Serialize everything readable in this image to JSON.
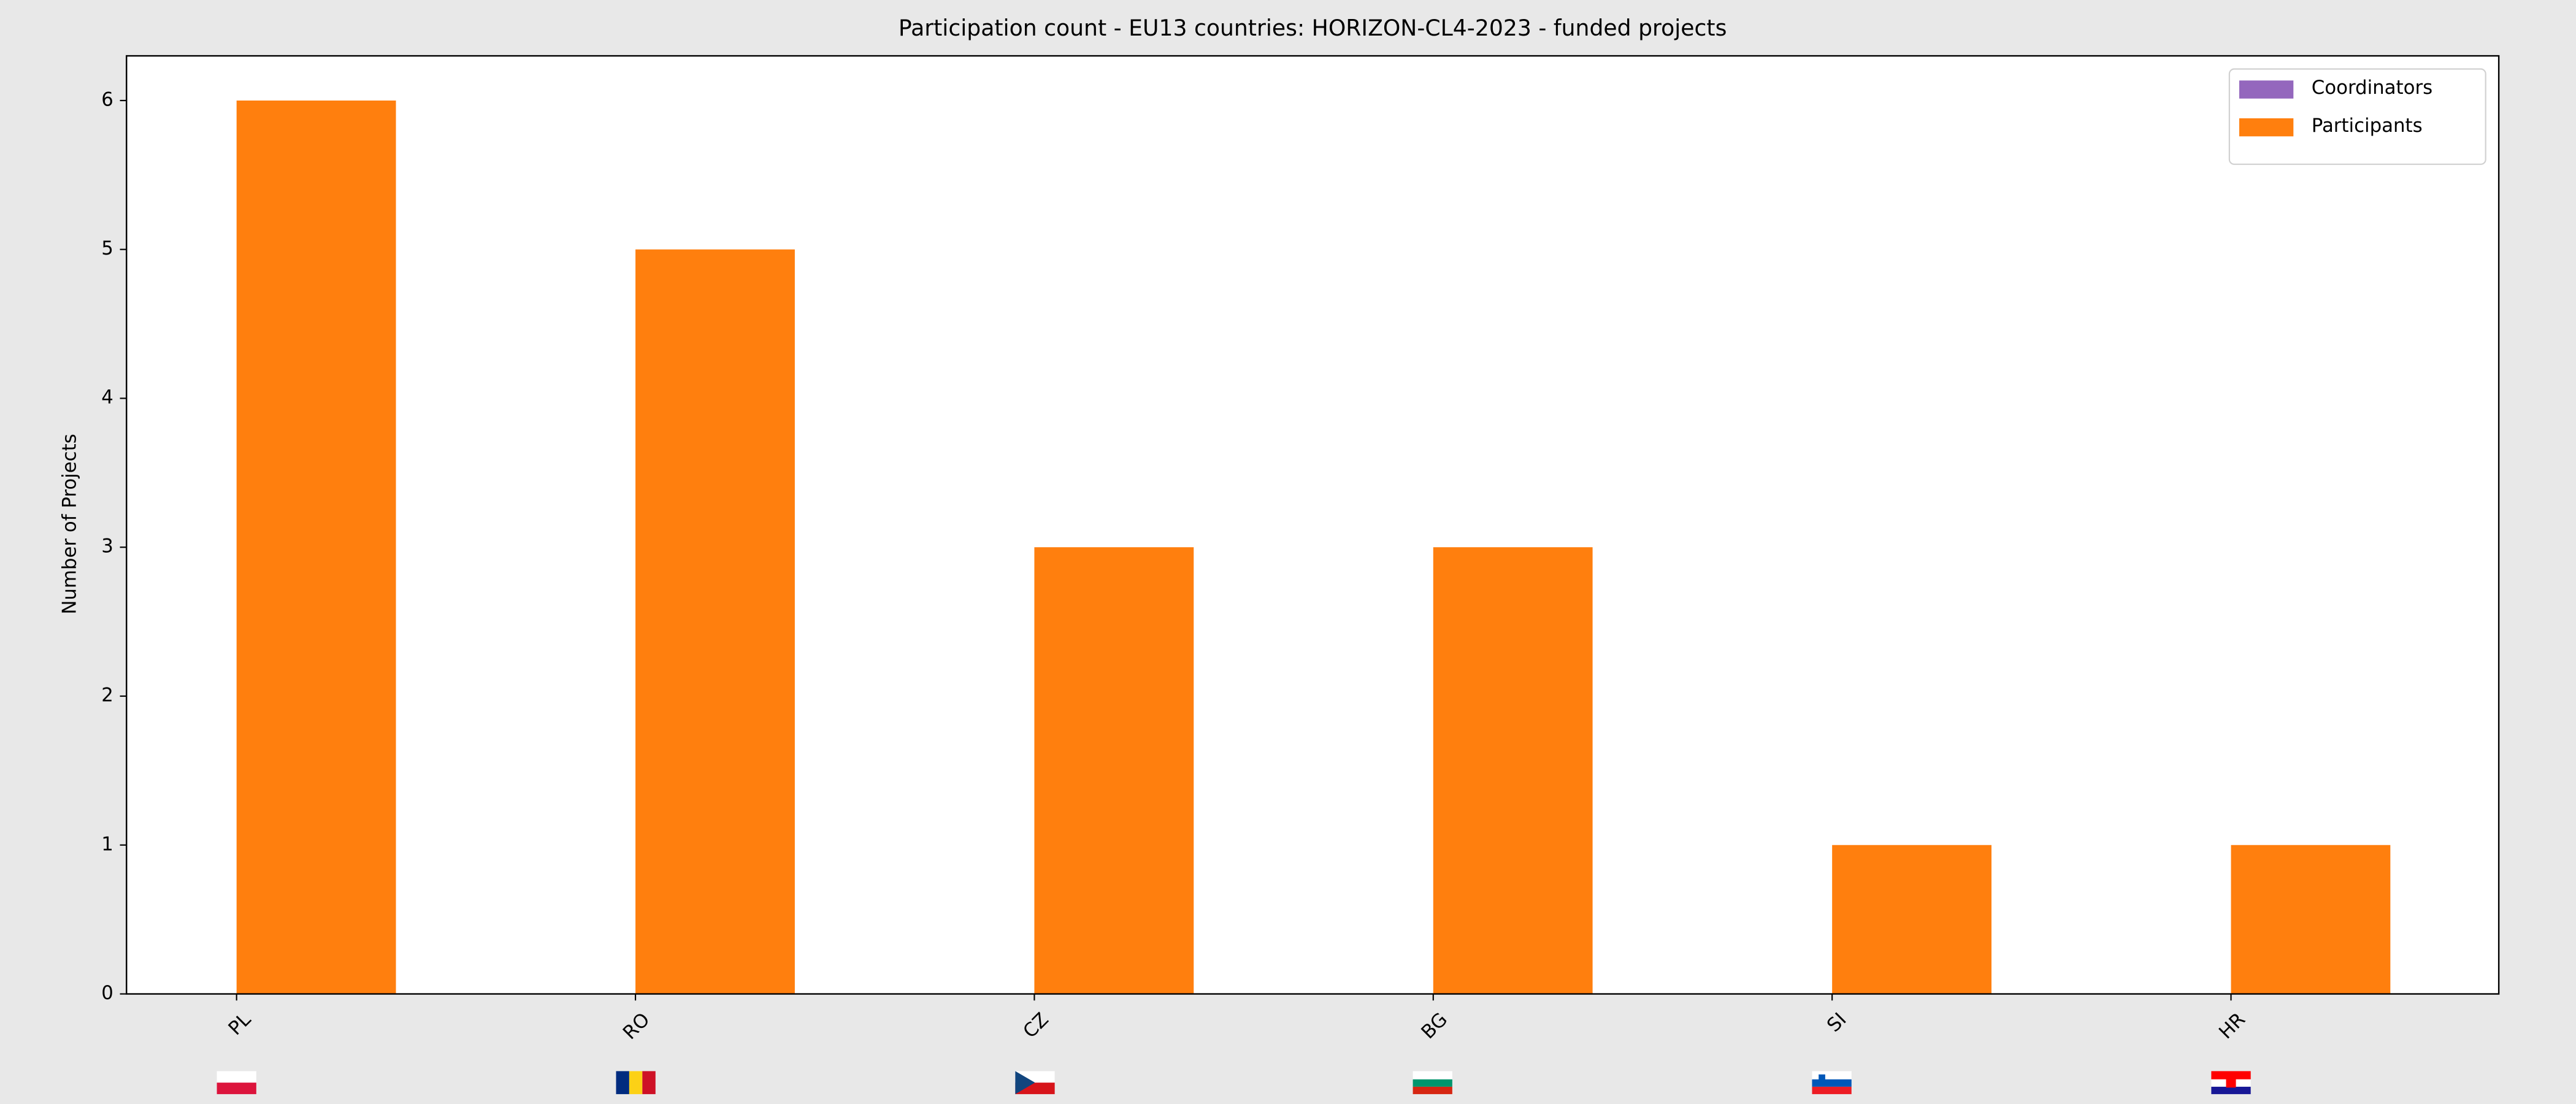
{
  "chart_data": {
    "type": "bar",
    "title": "Participation count - EU13 countries: HORIZON-CL4-2023 - funded projects",
    "y_label": "Number of Projects",
    "categories": [
      "PL",
      "RO",
      "CZ",
      "BG",
      "SI",
      "HR"
    ],
    "series": [
      {
        "name": "Coordinators",
        "color": "#9467bd",
        "values": [
          0,
          0,
          0,
          0,
          0,
          0
        ]
      },
      {
        "name": "Participants",
        "color": "#ff7f0e",
        "values": [
          6,
          5,
          3,
          3,
          1,
          1
        ]
      }
    ],
    "ylim": [
      0,
      6.3
    ],
    "yticks": [
      0,
      1,
      2,
      3,
      4,
      5,
      6
    ],
    "grid": false,
    "legend": "upper right"
  }
}
